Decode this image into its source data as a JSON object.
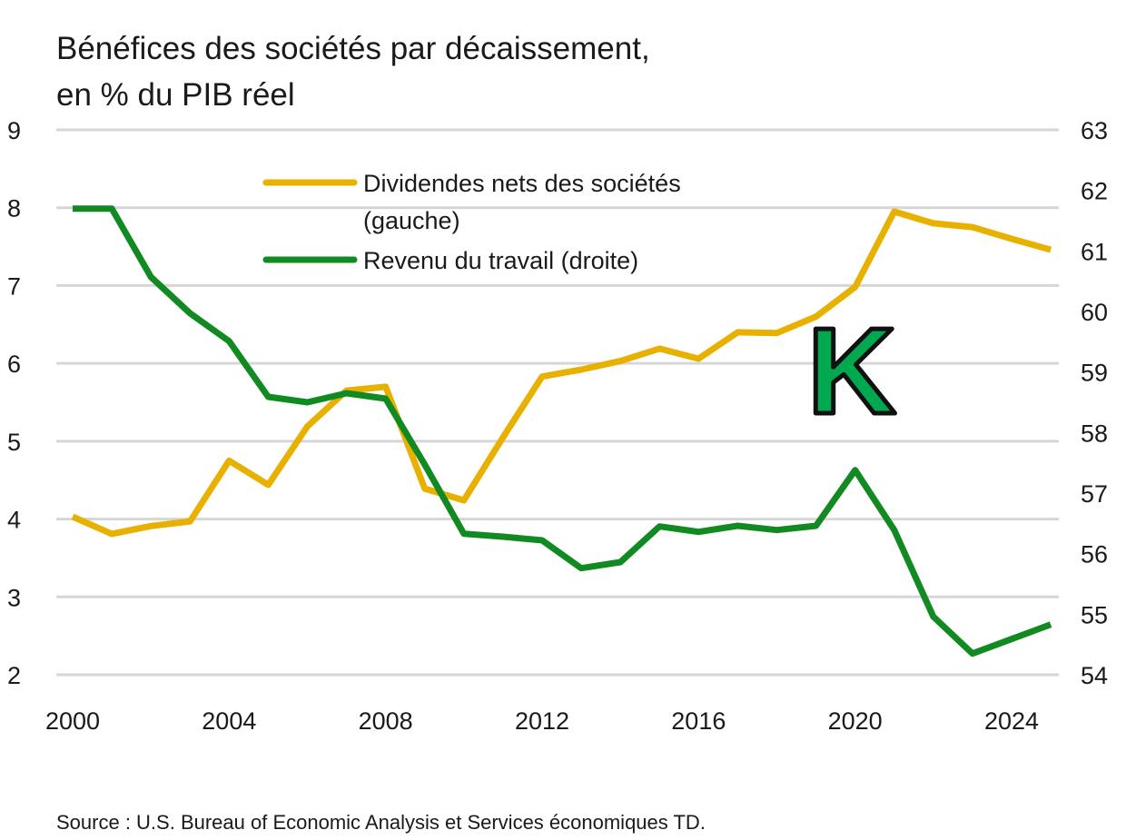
{
  "chart_data": {
    "type": "line",
    "title_line1": "Bénéfices des sociétés par décaissement,",
    "title_line2": "en % du PIB réel",
    "source": "Source : U.S. Bureau of Economic Analysis et Services économiques TD.",
    "annotation": "K",
    "x": [
      2000,
      2001,
      2002,
      2003,
      2004,
      2005,
      2006,
      2007,
      2008,
      2009,
      2010,
      2011,
      2012,
      2013,
      2014,
      2015,
      2016,
      2017,
      2018,
      2019,
      2020,
      2021,
      2022,
      2023,
      2024,
      2025
    ],
    "x_ticks": [
      "2000",
      "2004",
      "2008",
      "2012",
      "2016",
      "2020",
      "2024"
    ],
    "y_left": {
      "range": [
        2,
        9
      ],
      "ticks": [
        "2",
        "3",
        "4",
        "5",
        "6",
        "7",
        "8",
        "9"
      ]
    },
    "y_right": {
      "range": [
        54,
        63
      ],
      "ticks": [
        "54",
        "55",
        "56",
        "57",
        "58",
        "59",
        "60",
        "61",
        "62",
        "63"
      ]
    },
    "grid": true,
    "legend_placement": "top-center",
    "series": [
      {
        "name": "Dividendes nets des sociétés",
        "name_line2": "(gauche)",
        "axis": "left",
        "color": "#E8B100",
        "values": [
          4.03,
          3.81,
          3.91,
          3.97,
          4.75,
          4.44,
          5.19,
          5.65,
          5.7,
          4.39,
          4.24,
          5.05,
          5.83,
          5.92,
          6.03,
          6.19,
          6.06,
          6.4,
          6.39,
          6.6,
          6.98,
          7.95,
          7.8,
          7.75,
          7.6,
          7.46
        ]
      },
      {
        "name": "Revenu du travail (droite)",
        "axis": "right",
        "color": "#128A22",
        "values": [
          61.7,
          61.7,
          60.57,
          59.97,
          59.51,
          58.59,
          58.5,
          58.65,
          58.56,
          57.47,
          56.33,
          56.28,
          56.22,
          55.76,
          55.86,
          56.45,
          56.36,
          56.46,
          56.39,
          56.46,
          57.38,
          56.39,
          54.96,
          54.35,
          54.59,
          54.83
        ]
      }
    ],
    "annotation_color": "#00A850"
  }
}
